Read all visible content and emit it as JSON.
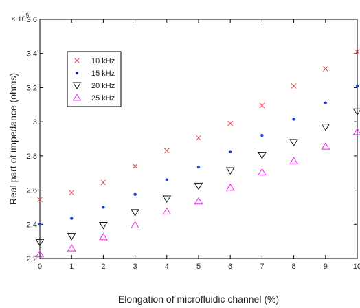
{
  "chart_data": {
    "type": "scatter",
    "xlabel": "Elongation of microfluidic channel (%)",
    "ylabel": "Real part of impedance (ohms)",
    "y_multiplier_label": "× 10",
    "y_multiplier_exponent": "5",
    "xlim": [
      0,
      10
    ],
    "ylim": [
      2.2,
      3.6
    ],
    "x_ticks": [
      0,
      1,
      2,
      3,
      4,
      5,
      6,
      7,
      8,
      9,
      10
    ],
    "x_tick_labels": [
      "0",
      "1",
      "2",
      "3",
      "4",
      "5",
      "6",
      "7",
      "8",
      "9",
      "10"
    ],
    "y_ticks": [
      2.2,
      2.4,
      2.6,
      2.8,
      3.0,
      3.2,
      3.4,
      3.6
    ],
    "y_tick_labels": [
      "2.2",
      "2.4",
      "2.6",
      "2.8",
      "3",
      "3.2",
      "3.4",
      "3.6"
    ],
    "grid": false,
    "legend_position": "top-left",
    "x": [
      0,
      1,
      2,
      3,
      4,
      5,
      6,
      7,
      8,
      9,
      10
    ],
    "series": [
      {
        "name": "10 kHz",
        "marker": "x",
        "color": "#e8474f",
        "values": [
          2.545,
          2.585,
          2.645,
          2.74,
          2.83,
          2.905,
          2.99,
          3.095,
          3.21,
          3.31,
          3.41
        ]
      },
      {
        "name": "15 kHz",
        "marker": "dot",
        "color": "#1f3fd0",
        "values": [
          2.4,
          2.435,
          2.5,
          2.575,
          2.66,
          2.735,
          2.825,
          2.92,
          3.015,
          3.11,
          3.21
        ]
      },
      {
        "name": "20 kHz",
        "marker": "triangle-down",
        "color": "#111111",
        "values": [
          2.295,
          2.33,
          2.395,
          2.47,
          2.55,
          2.625,
          2.715,
          2.805,
          2.88,
          2.97,
          3.06
        ]
      },
      {
        "name": "25 kHz",
        "marker": "triangle-up",
        "color": "#ee22ee",
        "values": [
          2.225,
          2.26,
          2.325,
          2.395,
          2.475,
          2.535,
          2.615,
          2.705,
          2.77,
          2.855,
          2.94
        ]
      }
    ]
  }
}
